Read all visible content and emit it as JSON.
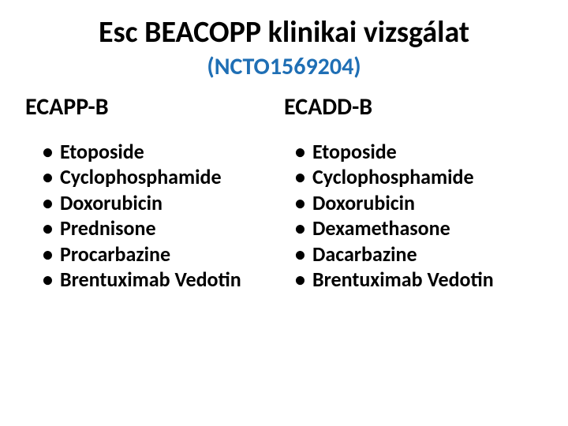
{
  "title": "Esc BEACOPP klinikai vizsgálat",
  "subtitle": "(NCTO1569204)",
  "title_color": "#000000",
  "subtitle_color": "#1f6fb5",
  "title_fontsize": 38,
  "subtitle_fontsize": 30,
  "columns": [
    {
      "header": "ECAPP-B",
      "items": [
        "Etoposide",
        "Cyclophosphamide",
        "Doxorubicin",
        "Prednisone",
        "Procarbazine",
        "Brentuximab Vedotin"
      ]
    },
    {
      "header": "ECADD-B",
      "items": [
        "Etoposide",
        "Cyclophosphamide",
        "Doxorubicin",
        "Dexamethasone",
        "Dacarbazine",
        "Brentuximab Vedotin"
      ]
    }
  ],
  "text_color": "#000000",
  "background_color": "#ffffff",
  "bullet_char": "•",
  "item_fontsize": 26,
  "header_fontsize": 30
}
